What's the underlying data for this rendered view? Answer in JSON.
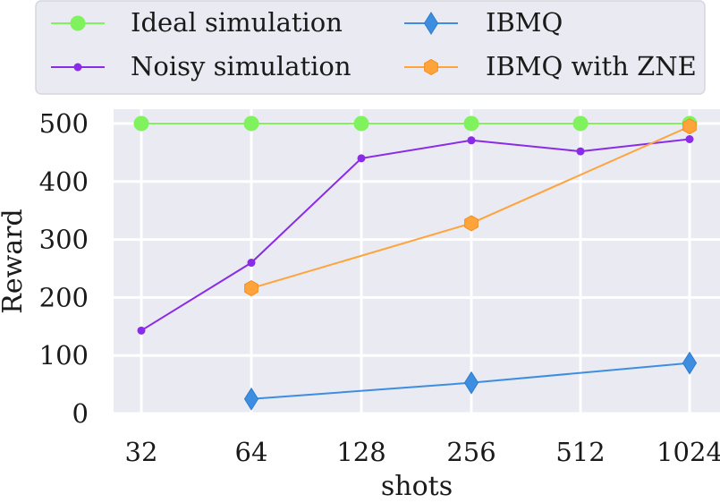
{
  "chart_data": {
    "type": "line",
    "xlabel": "shots",
    "ylabel": "Reward",
    "categories": [
      "32",
      "64",
      "128",
      "256",
      "512",
      "1024"
    ],
    "ylim": [
      0,
      500
    ],
    "yticks": [
      0,
      100,
      200,
      300,
      400,
      500
    ],
    "grid": true,
    "legend_position": "top",
    "series": [
      {
        "name": "Ideal simulation",
        "color": "#80f25e",
        "marker": "circle",
        "values": [
          500,
          500,
          500,
          500,
          500,
          500
        ]
      },
      {
        "name": "Noisy simulation",
        "color": "#8a2be8",
        "marker": "dot",
        "values": [
          143,
          260,
          440,
          471,
          452,
          473
        ]
      },
      {
        "name": "IBMQ",
        "color": "#3d8ee0",
        "marker": "diamond",
        "values": [
          null,
          25,
          null,
          53,
          null,
          87
        ]
      },
      {
        "name": "IBMQ with ZNE",
        "color": "#ffa33a",
        "marker": "hexagon",
        "values": [
          null,
          216,
          null,
          328,
          null,
          495
        ]
      }
    ]
  }
}
